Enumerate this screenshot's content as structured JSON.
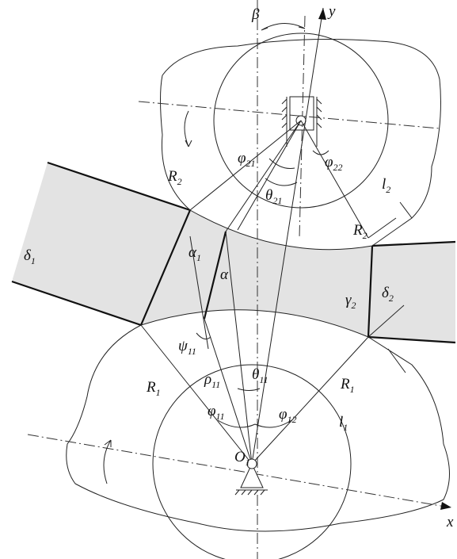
{
  "labels": [
    {
      "base": "β"
    },
    {
      "base": "y"
    },
    {
      "base": "φ",
      "sub": "21"
    },
    {
      "base": "φ",
      "sub": "22"
    },
    {
      "base": "R",
      "sub": "2"
    },
    {
      "base": "θ",
      "sub": "21"
    },
    {
      "base": "l",
      "sub": "2"
    },
    {
      "base": "R",
      "sub": "2"
    },
    {
      "base": "δ",
      "sub": "1"
    },
    {
      "base": "α",
      "sub": "1"
    },
    {
      "base": "α"
    },
    {
      "base": "δ",
      "sub": "2"
    },
    {
      "base": "γ",
      "sub": "2"
    },
    {
      "base": "ψ",
      "sub": "11"
    },
    {
      "base": "R",
      "sub": "1"
    },
    {
      "base": "ρ",
      "sub": "11"
    },
    {
      "base": "θ",
      "sub": "11"
    },
    {
      "base": "φ",
      "sub": "11"
    },
    {
      "base": "φ",
      "sub": "12"
    },
    {
      "base": "R",
      "sub": "1"
    },
    {
      "base": "l",
      "sub": "1"
    },
    {
      "base": "O",
      "sub": "1"
    },
    {
      "base": "x"
    }
  ]
}
